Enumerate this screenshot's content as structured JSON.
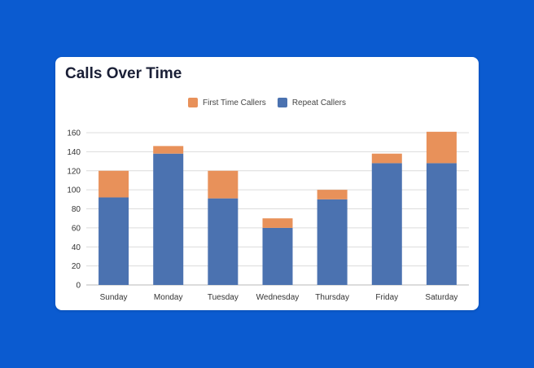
{
  "chart_data": {
    "type": "bar",
    "stacked": true,
    "title": "Calls Over Time",
    "categories": [
      "Sunday",
      "Monday",
      "Tuesday",
      "Wednesday",
      "Thursday",
      "Friday",
      "Saturday"
    ],
    "series": [
      {
        "name": "Repeat Callers",
        "color": "#4b72b0",
        "values": [
          92,
          138,
          91,
          60,
          90,
          128,
          128
        ]
      },
      {
        "name": "First Time Callers",
        "color": "#e8915a",
        "values": [
          28,
          8,
          29,
          10,
          10,
          10,
          33
        ]
      }
    ],
    "yticks": [
      0,
      20,
      40,
      60,
      80,
      100,
      120,
      140,
      160
    ],
    "ylim": [
      0,
      160
    ],
    "grid": true,
    "legend": "top-center",
    "legend_order": [
      "First Time Callers",
      "Repeat Callers"
    ]
  }
}
